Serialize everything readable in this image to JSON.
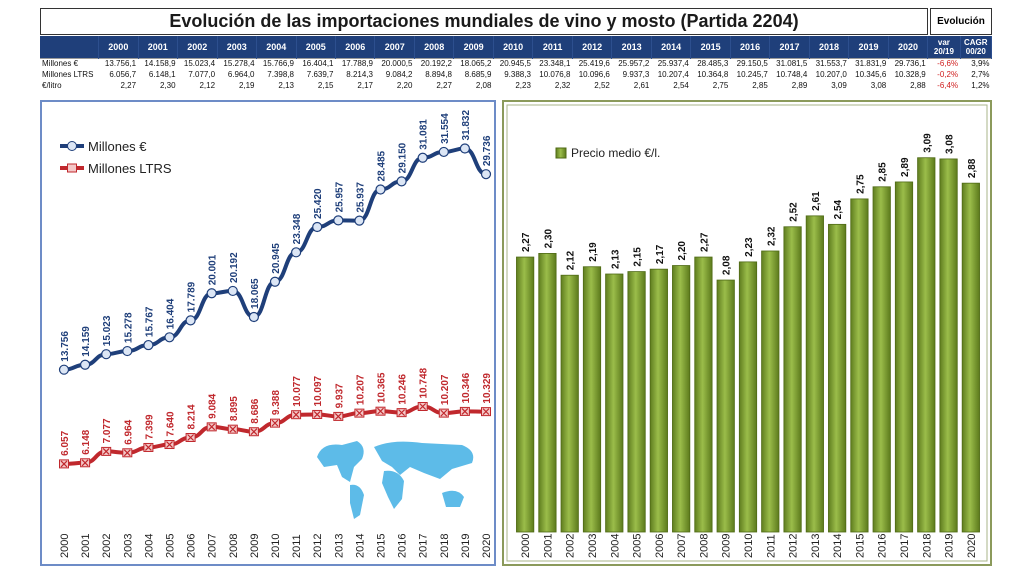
{
  "title": "Evolución de las importaciones mundiales de vino y mosto (Partida 2204)",
  "evolucion_label": "Evolución",
  "table": {
    "years": [
      "2000",
      "2001",
      "2002",
      "2003",
      "2004",
      "2005",
      "2006",
      "2007",
      "2008",
      "2009",
      "2010",
      "2011",
      "2012",
      "2013",
      "2014",
      "2015",
      "2016",
      "2017",
      "2018",
      "2019",
      "2020"
    ],
    "evo_headers": [
      "var 20/19",
      "CAGR 00/20"
    ],
    "rows": [
      {
        "label": "Millones €",
        "values": [
          "13.756,1",
          "14.158,9",
          "15.023,4",
          "15.278,4",
          "15.766,9",
          "16.404,1",
          "17.788,9",
          "20.000,5",
          "20.192,2",
          "18.065,2",
          "20.945,5",
          "23.348,1",
          "25.419,6",
          "25.957,2",
          "25.937,4",
          "28.485,3",
          "29.150,5",
          "31.081,5",
          "31.553,7",
          "31.831,9",
          "29.736,1"
        ],
        "var": "-6,6%",
        "cagr": "3,9%"
      },
      {
        "label": "Millones LTRS",
        "values": [
          "6.056,7",
          "6.148,1",
          "7.077,0",
          "6.964,0",
          "7.398,8",
          "7.639,7",
          "8.214,3",
          "9.084,2",
          "8.894,8",
          "8.685,9",
          "9.388,3",
          "10.076,8",
          "10.096,6",
          "9.937,3",
          "10.207,4",
          "10.364,8",
          "10.245,7",
          "10.748,4",
          "10.207,0",
          "10.345,6",
          "10.328,9"
        ],
        "var": "-0,2%",
        "cagr": "2,7%"
      },
      {
        "label": "€/litro",
        "values": [
          "2,27",
          "2,30",
          "2,12",
          "2,19",
          "2,13",
          "2,15",
          "2,17",
          "2,20",
          "2,27",
          "2,08",
          "2,23",
          "2,32",
          "2,52",
          "2,61",
          "2,54",
          "2,75",
          "2,85",
          "2,89",
          "3,09",
          "3,08",
          "2,88"
        ],
        "var": "-6,4%",
        "cagr": "1,2%"
      }
    ]
  },
  "chart_data": [
    {
      "type": "line",
      "title": "",
      "x": [
        "2000",
        "2001",
        "2002",
        "2003",
        "2004",
        "2005",
        "2006",
        "2007",
        "2008",
        "2009",
        "2010",
        "2011",
        "2012",
        "2013",
        "2014",
        "2015",
        "2016",
        "2017",
        "2018",
        "2019",
        "2020"
      ],
      "series": [
        {
          "name": "Millones €",
          "color": "#1f3f7a",
          "values": [
            13756,
            14159,
            15023,
            15278,
            15767,
            16404,
            17789,
            20001,
            20192,
            18065,
            20945,
            23348,
            25420,
            25957,
            25937,
            28485,
            29150,
            31081,
            31554,
            31832,
            29736
          ],
          "labels": [
            "13.756",
            "14.159",
            "15.023",
            "15.278",
            "15.767",
            "16.404",
            "17.789",
            "20.001",
            "20.192",
            "18.065",
            "20.945",
            "23.348",
            "25.420",
            "25.957",
            "25.937",
            "28.485",
            "29.150",
            "31.081",
            "31.554",
            "31.832",
            "29.736"
          ]
        },
        {
          "name": "Millones LTRS",
          "color": "#c0282d",
          "values": [
            6057,
            6148,
            7077,
            6964,
            7399,
            7640,
            8214,
            9084,
            8895,
            8686,
            9388,
            10077,
            10097,
            9937,
            10207,
            10365,
            10246,
            10748,
            10207,
            10346,
            10329
          ],
          "labels": [
            "6.057",
            "6.148",
            "7.077",
            "6.964",
            "7.399",
            "7.640",
            "8.214",
            "9.084",
            "8.895",
            "8.686",
            "9.388",
            "10.077",
            "10.097",
            "9.937",
            "10.207",
            "10.365",
            "10.246",
            "10.748",
            "10.207",
            "10.346",
            "10.329"
          ]
        }
      ],
      "legend": "top-left"
    },
    {
      "type": "bar",
      "title": "",
      "categories": [
        "2000",
        "2001",
        "2002",
        "2003",
        "2004",
        "2005",
        "2006",
        "2007",
        "2008",
        "2009",
        "2010",
        "2011",
        "2012",
        "2013",
        "2014",
        "2015",
        "2016",
        "2017",
        "2018",
        "2019",
        "2020"
      ],
      "series": [
        {
          "name": "Precio medio €/l.",
          "color": "#7a9a2e",
          "values": [
            2.27,
            2.3,
            2.12,
            2.19,
            2.13,
            2.15,
            2.17,
            2.2,
            2.27,
            2.08,
            2.23,
            2.32,
            2.52,
            2.61,
            2.54,
            2.75,
            2.85,
            2.89,
            3.09,
            3.08,
            2.88
          ],
          "labels": [
            "2,27",
            "2,30",
            "2,12",
            "2,19",
            "2,13",
            "2,15",
            "2,17",
            "2,20",
            "2,27",
            "2,08",
            "2,23",
            "2,32",
            "2,52",
            "2,61",
            "2,54",
            "2,75",
            "2,85",
            "2,89",
            "3,09",
            "3,08",
            "2,88"
          ]
        }
      ],
      "ylim": [
        0,
        3.2
      ],
      "legend": "top-left"
    }
  ]
}
